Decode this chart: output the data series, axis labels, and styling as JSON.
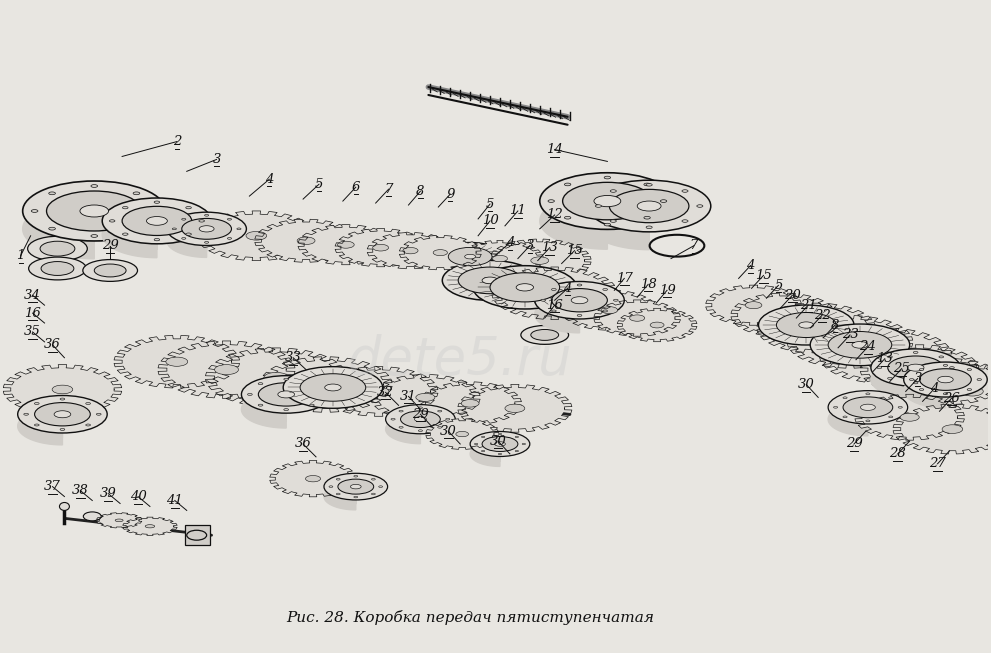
{
  "background_color": "#e8e6e1",
  "caption_text": "Рис. 28. Коробка передач пятиступенчатая",
  "caption_fontsize": 11,
  "caption_style": "italic",
  "fig_width": 9.91,
  "fig_height": 6.53,
  "dpi": 100,
  "watermark_text": "detе5.ru",
  "watermark_color": "#c8c8c8",
  "watermark_alpha": 0.35,
  "watermark_fontsize": 38
}
